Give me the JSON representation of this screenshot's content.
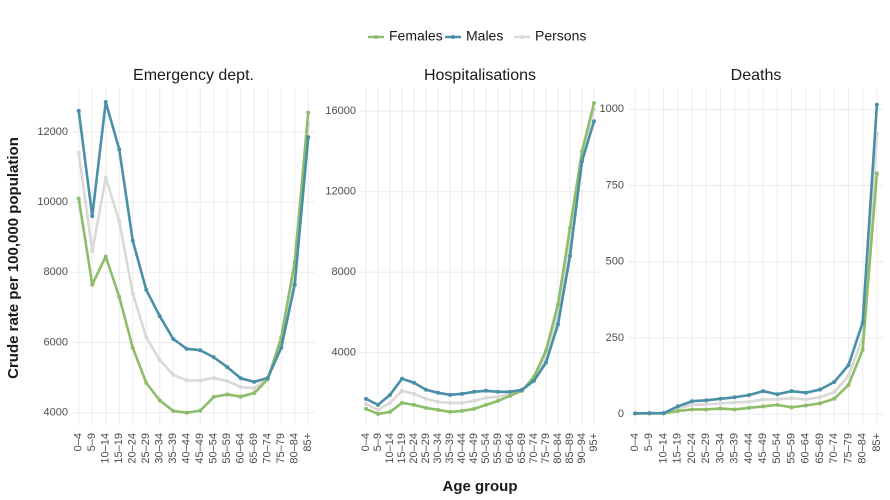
{
  "y_label": "Crude rate per 100,000 population",
  "x_label": "Age group",
  "chart_data": [
    {
      "type": "line",
      "title": "Emergency dept.",
      "categories": [
        "0–4",
        "5–9",
        "10–14",
        "15–19",
        "20–24",
        "25–29",
        "30–34",
        "35–39",
        "40–44",
        "45–49",
        "50–54",
        "55–59",
        "60–64",
        "65–69",
        "70–74",
        "75–79",
        "80–84",
        "85+"
      ],
      "series": [
        {
          "name": "Females",
          "color": "#8cbd68",
          "values": [
            10100,
            7650,
            8450,
            7300,
            5850,
            4850,
            4350,
            4050,
            4000,
            4060,
            4450,
            4520,
            4460,
            4560,
            4950,
            6150,
            8300,
            12550
          ]
        },
        {
          "name": "Males",
          "color": "#4a8fa8",
          "values": [
            12600,
            9600,
            12850,
            11500,
            8900,
            7500,
            6750,
            6100,
            5820,
            5780,
            5580,
            5300,
            4980,
            4880,
            4990,
            5850,
            7650,
            11850
          ]
        },
        {
          "name": "Persons",
          "color": "#d9d9d9",
          "values": [
            11400,
            8600,
            10700,
            9450,
            7400,
            6150,
            5500,
            5080,
            4920,
            4920,
            4990,
            4900,
            4730,
            4700,
            4970,
            6000,
            7950,
            12200
          ]
        }
      ],
      "ylim": [
        3650,
        13250
      ],
      "yticks": [
        4000,
        6000,
        8000,
        10000,
        12000
      ],
      "grid": true
    },
    {
      "type": "line",
      "title": "Hospitalisations",
      "categories": [
        "0–4",
        "5–9",
        "10–14",
        "15–19",
        "20–24",
        "25–29",
        "30–34",
        "35–39",
        "40–44",
        "45–49",
        "50–54",
        "55–59",
        "60–64",
        "65–69",
        "70–74",
        "75–79",
        "80–84",
        "85–89",
        "90–94",
        "95+"
      ],
      "series": [
        {
          "name": "Females",
          "color": "#8cbd68",
          "values": [
            1200,
            950,
            1050,
            1500,
            1400,
            1250,
            1150,
            1050,
            1100,
            1200,
            1400,
            1600,
            1850,
            2100,
            2800,
            4100,
            6400,
            10200,
            14000,
            16400
          ]
        },
        {
          "name": "Males",
          "color": "#4a8fa8",
          "values": [
            1700,
            1400,
            1900,
            2700,
            2500,
            2150,
            2000,
            1900,
            1950,
            2050,
            2100,
            2050,
            2050,
            2150,
            2600,
            3500,
            5400,
            8800,
            13500,
            15500
          ]
        },
        {
          "name": "Persons",
          "color": "#d9d9d9",
          "values": [
            1450,
            1150,
            1500,
            2100,
            1950,
            1700,
            1550,
            1500,
            1500,
            1600,
            1750,
            1800,
            1950,
            2100,
            2700,
            3800,
            5900,
            9500,
            13800,
            16100
          ]
        }
      ],
      "ylim": [
        400,
        17150
      ],
      "yticks": [
        4000,
        8000,
        12000,
        16000
      ],
      "grid": true
    },
    {
      "type": "line",
      "title": "Deaths",
      "categories": [
        "0–4",
        "5–9",
        "10–14",
        "15–19",
        "20–24",
        "25–29",
        "30–34",
        "35–39",
        "40–44",
        "45–49",
        "50–54",
        "55–59",
        "60–64",
        "65–69",
        "70–74",
        "75–79",
        "80–84",
        "85+"
      ],
      "series": [
        {
          "name": "Females",
          "color": "#8cbd68",
          "values": [
            2,
            2,
            2,
            10,
            15,
            15,
            18,
            15,
            20,
            25,
            30,
            22,
            28,
            35,
            50,
            95,
            210,
            790
          ]
        },
        {
          "name": "Males",
          "color": "#4a8fa8",
          "values": [
            2,
            3,
            3,
            25,
            42,
            45,
            50,
            55,
            62,
            75,
            65,
            75,
            70,
            80,
            105,
            160,
            300,
            1015
          ]
        },
        {
          "name": "Persons",
          "color": "#d9d9d9",
          "values": [
            2,
            2,
            2,
            18,
            30,
            32,
            35,
            38,
            40,
            48,
            48,
            52,
            48,
            55,
            72,
            125,
            250,
            920
          ]
        }
      ],
      "ylim": [
        -36,
        1070
      ],
      "yticks": [
        0,
        250,
        500,
        750,
        1000
      ],
      "grid": true
    }
  ]
}
